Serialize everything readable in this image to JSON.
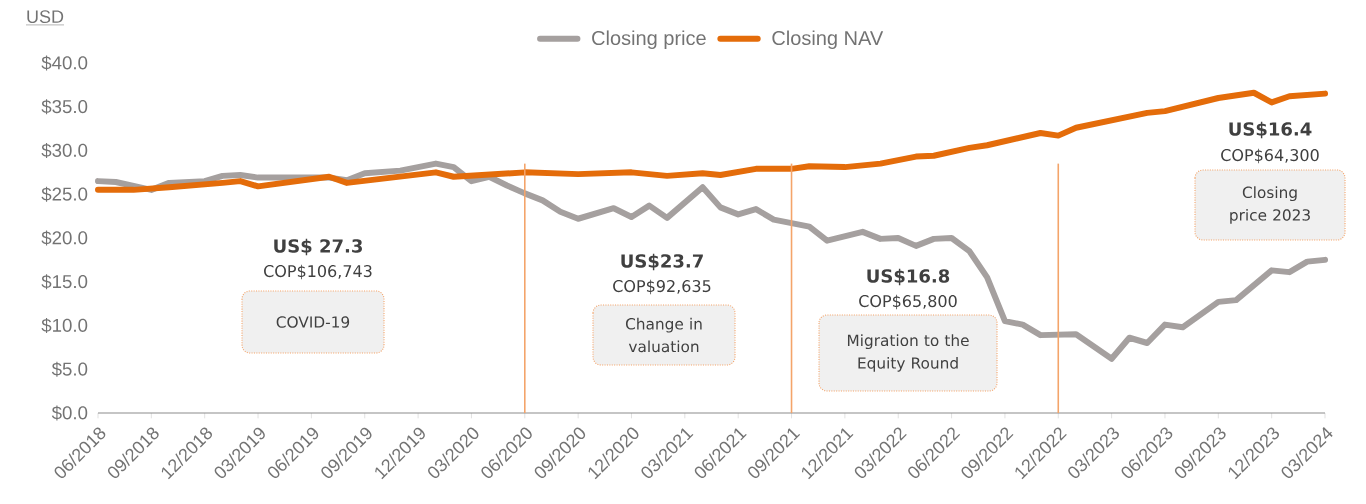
{
  "chart_data": {
    "type": "line",
    "ylabel": "USD",
    "legend": "top",
    "xlim": [
      "2018-06",
      "2024-03"
    ],
    "ylim": [
      0,
      40
    ],
    "xticks": [
      {
        "value": "2018-06",
        "label": "06/2018"
      },
      {
        "value": "2018-09",
        "label": "09/2018"
      },
      {
        "value": "2018-12",
        "label": "12/2018"
      },
      {
        "value": "2019-03",
        "label": "03/2019"
      },
      {
        "value": "2019-06",
        "label": "06/2019"
      },
      {
        "value": "2019-09",
        "label": "09/2019"
      },
      {
        "value": "2019-12",
        "label": "12/2019"
      },
      {
        "value": "2020-03",
        "label": "03/2020"
      },
      {
        "value": "2020-06",
        "label": "06/2020"
      },
      {
        "value": "2020-09",
        "label": "09/2020"
      },
      {
        "value": "2020-12",
        "label": "12/2020"
      },
      {
        "value": "2021-03",
        "label": "03/2021"
      },
      {
        "value": "2021-06",
        "label": "06/2021"
      },
      {
        "value": "2021-09",
        "label": "09/2021"
      },
      {
        "value": "2021-12",
        "label": "12/2021"
      },
      {
        "value": "2022-03",
        "label": "03/2022"
      },
      {
        "value": "2022-06",
        "label": "06/2022"
      },
      {
        "value": "2022-09",
        "label": "09/2022"
      },
      {
        "value": "2022-12",
        "label": "12/2022"
      },
      {
        "value": "2023-03",
        "label": "03/2023"
      },
      {
        "value": "2023-06",
        "label": "06/2023"
      },
      {
        "value": "2023-09",
        "label": "09/2023"
      },
      {
        "value": "2023-12",
        "label": "12/2023"
      },
      {
        "value": "2024-03",
        "label": "03/2024"
      }
    ],
    "yticks": [
      {
        "value": 0,
        "label": "$0.0"
      },
      {
        "value": 5,
        "label": "$5.0"
      },
      {
        "value": 10,
        "label": "$10.0"
      },
      {
        "value": 15,
        "label": "$15.0"
      },
      {
        "value": 20,
        "label": "$20.0"
      },
      {
        "value": 25,
        "label": "$25.0"
      },
      {
        "value": 30,
        "label": "$30.0"
      },
      {
        "value": 35,
        "label": "$35.0"
      },
      {
        "value": 40,
        "label": "$40.0"
      }
    ],
    "series": [
      {
        "name": "Closing price",
        "color": "#a5a09f",
        "x": [
          "2018-06",
          "2018-07",
          "2018-09",
          "2018-10",
          "2018-12",
          "2019-01",
          "2019-02",
          "2019-03",
          "2019-05",
          "2019-07",
          "2019-08",
          "2019-09",
          "2019-11",
          "2020-01",
          "2020-02",
          "2020-03",
          "2020-04",
          "2020-05",
          "2020-06",
          "2020-07",
          "2020-08",
          "2020-09",
          "2020-11",
          "2020-12",
          "2021-01",
          "2021-02",
          "2021-04",
          "2021-05",
          "2021-06",
          "2021-07",
          "2021-08",
          "2021-10",
          "2021-11",
          "2022-01",
          "2022-02",
          "2022-03",
          "2022-04",
          "2022-05",
          "2022-06",
          "2022-07",
          "2022-08",
          "2022-09",
          "2022-10",
          "2022-11",
          "2023-01",
          "2023-03",
          "2023-04",
          "2023-05",
          "2023-06",
          "2023-07",
          "2023-09",
          "2023-10",
          "2023-12",
          "2024-01",
          "2024-02",
          "2024-03"
        ],
        "values": [
          26.5,
          26.4,
          25.5,
          26.3,
          26.5,
          27.1,
          27.2,
          26.9,
          26.9,
          26.9,
          26.6,
          27.4,
          27.7,
          28.5,
          28.1,
          26.5,
          27.0,
          26.0,
          25.1,
          24.3,
          23.0,
          22.2,
          23.4,
          22.4,
          23.7,
          22.3,
          25.8,
          23.5,
          22.7,
          23.3,
          22.1,
          21.3,
          19.7,
          20.7,
          19.9,
          20.0,
          19.1,
          19.9,
          20.0,
          18.5,
          15.5,
          10.5,
          10.1,
          8.9,
          9.0,
          6.2,
          8.6,
          8.0,
          10.1,
          9.8,
          12.7,
          12.9,
          16.3,
          16.1,
          17.3,
          17.5
        ]
      },
      {
        "name": "Closing NAV",
        "color": "#e46c0a",
        "x": [
          "2018-06",
          "2018-08",
          "2018-10",
          "2019-01",
          "2019-02",
          "2019-03",
          "2019-07",
          "2019-08",
          "2020-01",
          "2020-02",
          "2020-06",
          "2020-09",
          "2020-12",
          "2021-02",
          "2021-04",
          "2021-05",
          "2021-07",
          "2021-09",
          "2021-10",
          "2021-12",
          "2022-02",
          "2022-04",
          "2022-05",
          "2022-07",
          "2022-08",
          "2022-11",
          "2022-12",
          "2023-01",
          "2023-05",
          "2023-06",
          "2023-09",
          "2023-11",
          "2023-12",
          "2024-01",
          "2024-03"
        ],
        "values": [
          25.5,
          25.5,
          25.8,
          26.3,
          26.5,
          25.9,
          27.0,
          26.3,
          27.5,
          27.0,
          27.5,
          27.3,
          27.5,
          27.1,
          27.4,
          27.2,
          27.9,
          27.9,
          28.2,
          28.1,
          28.5,
          29.3,
          29.4,
          30.3,
          30.6,
          32.0,
          31.7,
          32.6,
          34.3,
          34.5,
          36.0,
          36.6,
          35.5,
          36.2,
          36.5
        ]
      }
    ],
    "ref_lines": [
      {
        "axis": "x",
        "value": "2020-06",
        "color": "#f4a46a"
      },
      {
        "axis": "x",
        "value": "2021-09",
        "color": "#f4a46a"
      },
      {
        "axis": "x",
        "value": "2022-12",
        "color": "#f4a46a"
      }
    ],
    "annotations": [
      "US$ 27.3",
      "COP$106,743",
      "COVID-19",
      "US$23.7",
      "COP$92,635",
      "Change in valuation",
      "US$16.8",
      "COP$65,800",
      "Migration to the Equity Round",
      "US$16.4",
      "COP$64,300",
      "Closing price 2023"
    ]
  }
}
